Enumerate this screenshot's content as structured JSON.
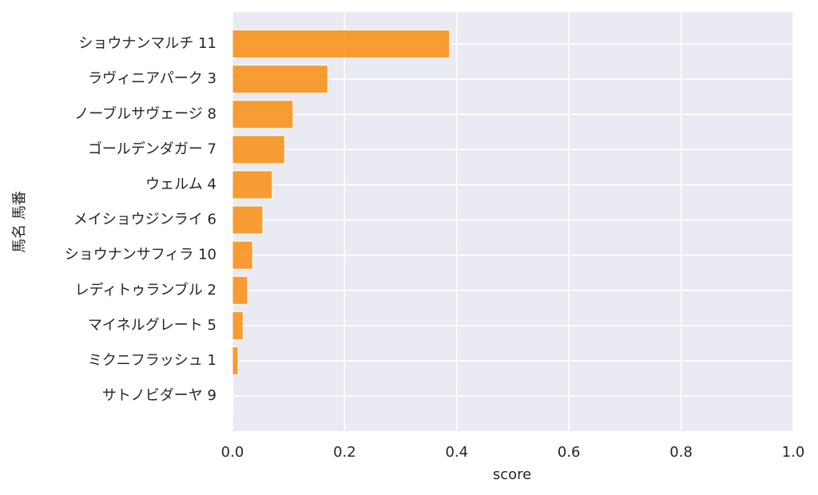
{
  "chart_data": {
    "type": "barh",
    "categories": [
      "ショウナンマルチ 11",
      "ラヴィニアパーク 3",
      "ノーブルサヴェージ 8",
      "ゴールデンダガー 7",
      "ウェルム 4",
      "メイショウジンライ 6",
      "ショウナンサフィラ 10",
      "レディトゥランブル 2",
      "マイネルグレート 5",
      "ミクニフラッシュ 1",
      "サトノビダーヤ 9"
    ],
    "values": [
      0.387,
      0.17,
      0.108,
      0.093,
      0.071,
      0.054,
      0.036,
      0.027,
      0.019,
      0.01,
      0.001
    ],
    "color": "#f7941d",
    "xlabel": "score",
    "ylabel": "馬名 馬番",
    "xlim": [
      0,
      1
    ],
    "xticks": [
      {
        "value": 0,
        "label": "0.0"
      },
      {
        "value": 0.2,
        "label": "0.2"
      },
      {
        "value": 0.4,
        "label": "0.4"
      },
      {
        "value": 0.6,
        "label": "0.6"
      },
      {
        "value": 0.8,
        "label": "0.8"
      },
      {
        "value": 1,
        "label": "1.0"
      }
    ],
    "grid": true
  }
}
